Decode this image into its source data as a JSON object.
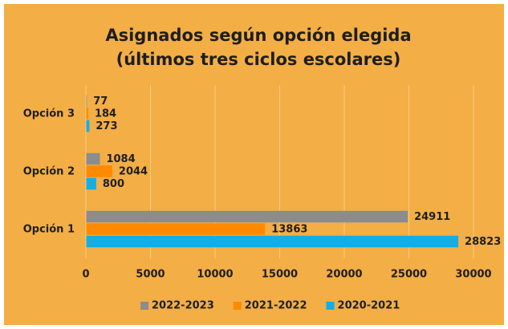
{
  "chart_data": {
    "type": "hbar",
    "title": [
      "Asignados según opción elegida",
      "(últimos tres ciclos escolares)"
    ],
    "categories": [
      "Opción 1",
      "Opción 2",
      "Opción 3"
    ],
    "series": [
      {
        "name": "2022-2023",
        "color": "#8c8c8c",
        "values": [
          24911,
          1084,
          77
        ]
      },
      {
        "name": "2021-2022",
        "color": "#ff8a00",
        "values": [
          13863,
          2044,
          184
        ]
      },
      {
        "name": "2020-2021",
        "color": "#13aee6",
        "values": [
          28823,
          800,
          273
        ]
      }
    ],
    "xlim": [
      0,
      30000
    ],
    "xticks": [
      0,
      5000,
      10000,
      15000,
      20000,
      25000,
      30000
    ],
    "grid": true,
    "legend": "bottom"
  }
}
